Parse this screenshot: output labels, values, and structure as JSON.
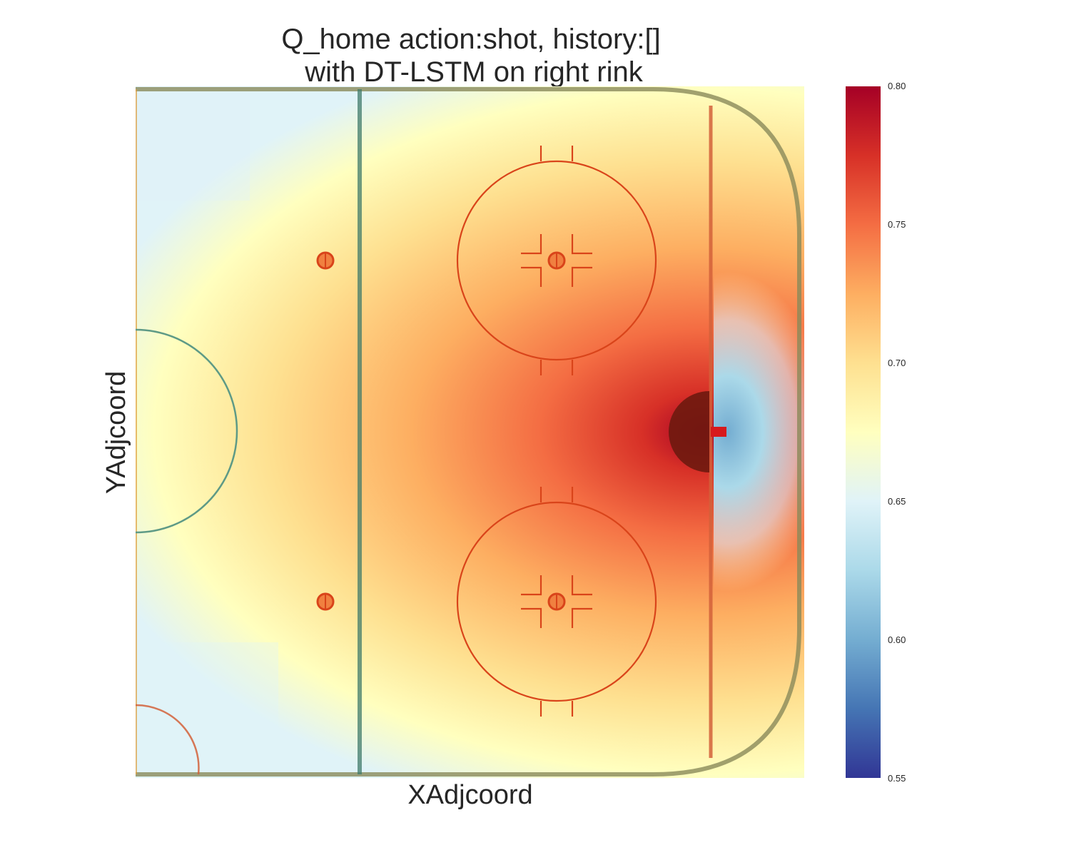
{
  "chart_data": {
    "type": "heatmap",
    "title": [
      "Q_home action:shot, history:[]",
      "with DT-LSTM on right rink"
    ],
    "xlabel": "XAdjcoord",
    "ylabel": "YAdjcoord",
    "background": "right half of hockey rink",
    "grid": false,
    "colormap": "RdYlBu_r",
    "colorbar": {
      "vmin": 0.55,
      "vmax": 0.8,
      "ticks": [
        "0.80",
        "0.75",
        "0.70",
        "0.65",
        "0.60",
        "0.55"
      ],
      "placement": "right"
    },
    "value_estimates": {
      "peak_near_goal_crease": 0.8,
      "slot_in_front_of_goal": 0.76,
      "faceoff_circles": 0.73,
      "blue_line_center": 0.72,
      "neutral_zone_edges": 0.69,
      "corner_near_center_ice": 0.66,
      "behind_net": 0.62
    }
  }
}
